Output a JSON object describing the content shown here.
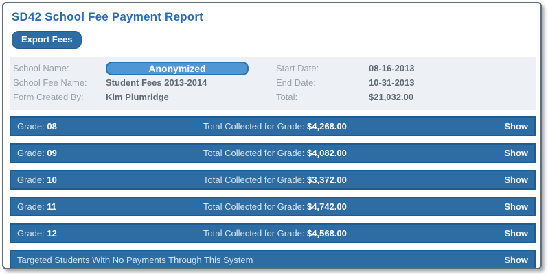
{
  "page": {
    "title": "SD42 School Fee Payment Report"
  },
  "toolbar": {
    "export_label": "Export Fees"
  },
  "info": {
    "school_name_label": "School Name:",
    "school_name_value": "Anonymized",
    "school_fee_name_label": "School Fee Name:",
    "school_fee_name_value": "Student Fees 2013-2014",
    "form_created_by_label": "Form Created By:",
    "form_created_by_value": "Kim Plumridge",
    "start_date_label": "Start Date:",
    "start_date_value": "08-16-2013",
    "end_date_label": "End Date:",
    "end_date_value": "10-31-2013",
    "total_label": "Total:",
    "total_value": "$21,032.00"
  },
  "grades": [
    {
      "label": "Grade:",
      "number": "08",
      "total_label": "Total Collected for Grade:",
      "amount": "$4,268.00",
      "show_label": "Show"
    },
    {
      "label": "Grade:",
      "number": "09",
      "total_label": "Total Collected for Grade:",
      "amount": "$4,082.00",
      "show_label": "Show"
    },
    {
      "label": "Grade:",
      "number": "10",
      "total_label": "Total Collected for Grade:",
      "amount": "$3,372.00",
      "show_label": "Show"
    },
    {
      "label": "Grade:",
      "number": "11",
      "total_label": "Total Collected for Grade:",
      "amount": "$4,742.00",
      "show_label": "Show"
    },
    {
      "label": "Grade:",
      "number": "12",
      "total_label": "Total Collected for Grade:",
      "amount": "$4,568.00",
      "show_label": "Show"
    }
  ],
  "no_payments_row": {
    "label": "Targeted Students With No Payments Through This System",
    "show_label": "Show"
  },
  "colors": {
    "title_blue": "#2b6cb5",
    "bar_blue": "#2e6da4",
    "bar_border_blue": "#1f5c94",
    "badge_blue": "#4f97d4",
    "panel_bg": "#edf1f6"
  }
}
